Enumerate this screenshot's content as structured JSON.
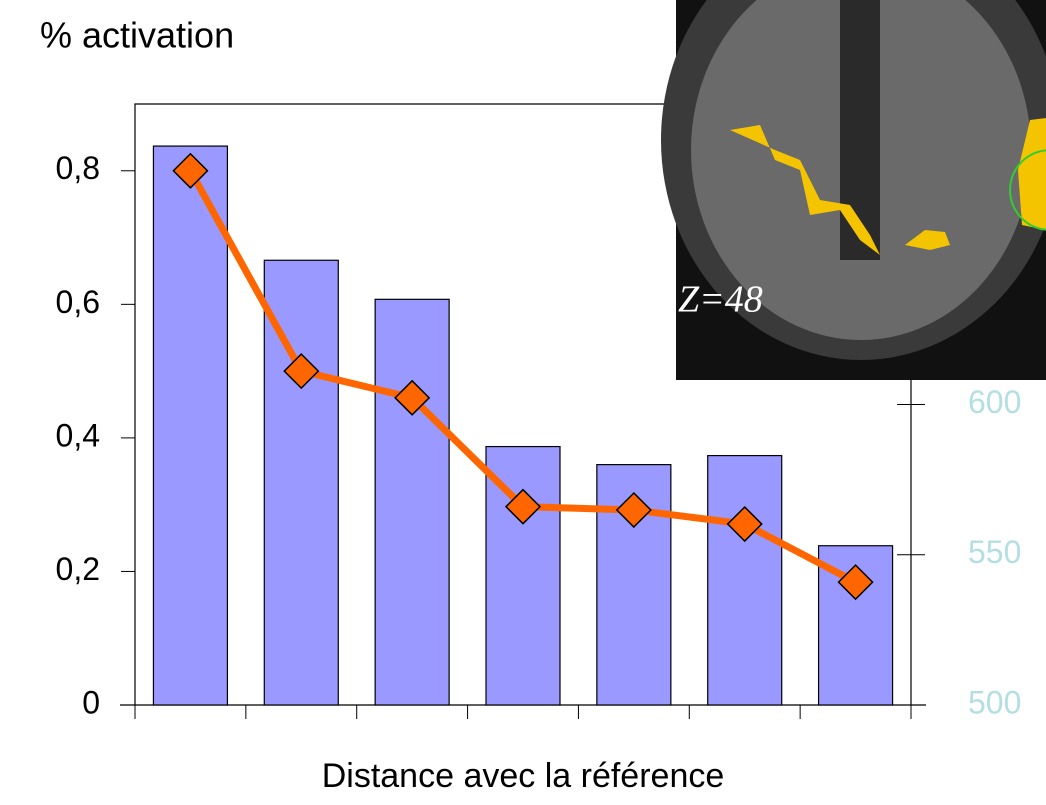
{
  "chart_data": {
    "type": "bar",
    "title": "% activation",
    "x_label": "Distance avec la référence",
    "categories": [
      null,
      null,
      null,
      null,
      null,
      null,
      null
    ],
    "series": [
      {
        "type": "bar",
        "color": "#9999ff",
        "axis": "y2",
        "values": [
          686,
          648,
          635,
          586,
          580,
          583,
          553
        ]
      },
      {
        "type": "line",
        "color": "#ff6600",
        "values": [
          0.8,
          0.5,
          0.46,
          0.297,
          0.292,
          0.271,
          0.184
        ]
      }
    ],
    "ylim": [
      0,
      0.9
    ],
    "yticks": [
      {
        "value": 0,
        "label": "0"
      },
      {
        "value": 0.2,
        "label": "0,2"
      },
      {
        "value": 0.4,
        "label": "0,4"
      },
      {
        "value": 0.6,
        "label": "0,6"
      },
      {
        "value": 0.8,
        "label": "0,8"
      }
    ],
    "y2lim": [
      500,
      700
    ],
    "y2ticks": [
      500,
      550,
      600
    ],
    "inset_label": "Z=48"
  }
}
